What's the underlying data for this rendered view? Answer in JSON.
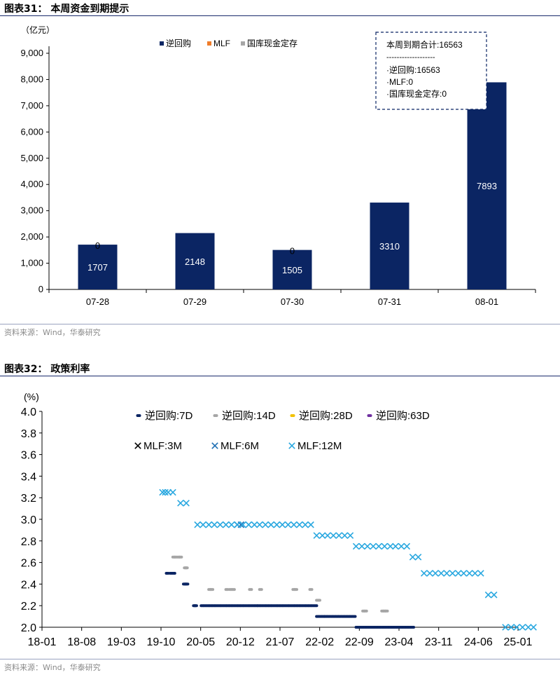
{
  "figure1": {
    "title": "图表31： 本周资金到期提示",
    "source": "资料来源：Wind，华泰研究",
    "unit_label": "（亿元）",
    "summary_box": [
      "本周到期合计:16563",
      "-------------------",
      "·逆回购:16563",
      "·MLF:0",
      "·国库现金定存:0"
    ]
  },
  "figure2": {
    "title": "图表32： 政策利率",
    "source": "资料来源：Wind，华泰研究",
    "unit_label": "(%)"
  },
  "colors": {
    "navy": "#0b2563",
    "orange": "#f07d2a",
    "gray": "#a6a6a6",
    "gold": "#f2c200",
    "purple": "#7030a0",
    "mlf_3m": "#000000",
    "mlf_6m": "#1f6fb4",
    "mlf_12m": "#2aa8e0"
  },
  "chart_data": [
    {
      "type": "bar",
      "stacked": true,
      "categories": [
        "07-28",
        "07-29",
        "07-30",
        "07-31",
        "08-01"
      ],
      "series": [
        {
          "name": "逆回购",
          "values": [
            1707,
            2148,
            1505,
            3310,
            7893
          ],
          "labels": [
            "1707",
            "2148",
            "1505",
            "3310",
            "7893"
          ]
        },
        {
          "name": "MLF",
          "values": [
            0,
            0,
            0,
            0,
            0
          ],
          "labels": [
            "0",
            "",
            "0",
            "",
            ""
          ]
        },
        {
          "name": "国库现金定存",
          "values": [
            0,
            0,
            0,
            0,
            0
          ],
          "labels": [
            "",
            "",
            "",
            "",
            ""
          ]
        }
      ],
      "yticks": [
        "0",
        "1,000",
        "2,000",
        "3,000",
        "4,000",
        "5,000",
        "6,000",
        "7,000",
        "8,000",
        "9,000"
      ],
      "ylim": [
        0,
        9000
      ],
      "legend": "top-center"
    },
    {
      "type": "scatter",
      "x_ticks": [
        "18-01",
        "18-08",
        "19-03",
        "19-10",
        "20-05",
        "20-12",
        "21-07",
        "22-02",
        "22-09",
        "23-04",
        "23-11",
        "24-06",
        "25-01"
      ],
      "yticks": [
        "2.0",
        "2.2",
        "2.4",
        "2.6",
        "2.8",
        "3.0",
        "3.2",
        "3.4",
        "3.6",
        "3.8",
        "4.0"
      ],
      "ylim": [
        2.0,
        4.0
      ],
      "legend": "top",
      "series": [
        {
          "name": "逆回购:7D",
          "marker": "dot",
          "points": [
            [
              "2019-11-05",
              2.5
            ],
            [
              "2019-11-25",
              2.5
            ],
            [
              "2019-12-10",
              2.5
            ],
            [
              "2020-02-05",
              2.4
            ],
            [
              "2020-02-12",
              2.4
            ],
            [
              "2020-02-18",
              2.4
            ],
            [
              "2020-03-30",
              2.2
            ],
            [
              "2020-04-05",
              2.2
            ],
            [
              "2020-05-10",
              2.2
            ],
            [
              "2020-05-25",
              2.2
            ],
            [
              "2020-06-10",
              2.2
            ],
            [
              "2020-06-25",
              2.2
            ],
            [
              "2020-07-10",
              2.2
            ],
            [
              "2020-07-25",
              2.2
            ],
            [
              "2020-08-10",
              2.2
            ],
            [
              "2020-08-25",
              2.2
            ],
            [
              "2020-09-10",
              2.2
            ],
            [
              "2020-09-25",
              2.2
            ],
            [
              "2020-10-10",
              2.2
            ],
            [
              "2020-10-25",
              2.2
            ],
            [
              "2020-11-10",
              2.2
            ],
            [
              "2020-11-25",
              2.2
            ],
            [
              "2020-12-10",
              2.2
            ],
            [
              "2020-12-25",
              2.2
            ],
            [
              "2021-01-10",
              2.2
            ],
            [
              "2021-01-25",
              2.2
            ],
            [
              "2021-02-10",
              2.2
            ],
            [
              "2021-02-25",
              2.2
            ],
            [
              "2021-03-10",
              2.2
            ],
            [
              "2021-03-25",
              2.2
            ],
            [
              "2021-04-10",
              2.2
            ],
            [
              "2021-04-25",
              2.2
            ],
            [
              "2021-05-10",
              2.2
            ],
            [
              "2021-05-25",
              2.2
            ],
            [
              "2021-06-10",
              2.2
            ],
            [
              "2021-06-25",
              2.2
            ],
            [
              "2021-07-10",
              2.2
            ],
            [
              "2021-07-25",
              2.2
            ],
            [
              "2021-08-10",
              2.2
            ],
            [
              "2021-08-25",
              2.2
            ],
            [
              "2021-09-10",
              2.2
            ],
            [
              "2021-09-25",
              2.2
            ],
            [
              "2021-10-10",
              2.2
            ],
            [
              "2021-10-25",
              2.2
            ],
            [
              "2021-11-10",
              2.2
            ],
            [
              "2021-11-25",
              2.2
            ],
            [
              "2021-12-10",
              2.2
            ],
            [
              "2021-12-25",
              2.2
            ],
            [
              "2022-01-10",
              2.2
            ],
            [
              "2022-01-20",
              2.1
            ],
            [
              "2022-02-05",
              2.1
            ],
            [
              "2022-02-20",
              2.1
            ],
            [
              "2022-03-05",
              2.1
            ],
            [
              "2022-03-20",
              2.1
            ],
            [
              "2022-04-05",
              2.1
            ],
            [
              "2022-04-20",
              2.1
            ],
            [
              "2022-05-05",
              2.1
            ],
            [
              "2022-05-20",
              2.1
            ],
            [
              "2022-06-05",
              2.1
            ],
            [
              "2022-06-20",
              2.1
            ],
            [
              "2022-07-05",
              2.1
            ],
            [
              "2022-07-20",
              2.1
            ],
            [
              "2022-08-05",
              2.1
            ],
            [
              "2022-08-20",
              2.0
            ],
            [
              "2022-09-05",
              2.0
            ],
            [
              "2022-09-20",
              2.0
            ],
            [
              "2022-10-05",
              2.0
            ],
            [
              "2022-10-20",
              2.0
            ],
            [
              "2022-11-05",
              2.0
            ],
            [
              "2022-11-20",
              2.0
            ],
            [
              "2022-12-05",
              2.0
            ],
            [
              "2022-12-20",
              2.0
            ],
            [
              "2023-01-05",
              2.0
            ],
            [
              "2023-01-20",
              2.0
            ],
            [
              "2023-02-05",
              2.0
            ],
            [
              "2023-02-20",
              2.0
            ],
            [
              "2023-03-05",
              2.0
            ],
            [
              "2023-03-20",
              2.0
            ],
            [
              "2023-04-05",
              2.0
            ],
            [
              "2023-04-20",
              2.0
            ],
            [
              "2023-05-05",
              2.0
            ],
            [
              "2023-05-20",
              2.0
            ],
            [
              "2023-06-05",
              2.0
            ],
            [
              "2023-06-15",
              2.0
            ]
          ]
        },
        {
          "name": "逆回购:14D",
          "marker": "dot",
          "points": [
            [
              "2019-12-10",
              2.65
            ],
            [
              "2019-12-20",
              2.65
            ],
            [
              "2020-01-05",
              2.65
            ],
            [
              "2020-01-15",
              2.65
            ],
            [
              "2020-02-10",
              2.55
            ],
            [
              "2020-02-15",
              2.55
            ],
            [
              "2020-06-20",
              2.35
            ],
            [
              "2020-07-01",
              2.35
            ],
            [
              "2020-09-20",
              2.35
            ],
            [
              "2020-10-10",
              2.35
            ],
            [
              "2020-10-25",
              2.35
            ],
            [
              "2021-01-25",
              2.35
            ],
            [
              "2021-03-20",
              2.35
            ],
            [
              "2021-09-15",
              2.35
            ],
            [
              "2021-09-25",
              2.35
            ],
            [
              "2021-12-15",
              2.35
            ],
            [
              "2022-01-20",
              2.25
            ],
            [
              "2022-01-27",
              2.25
            ],
            [
              "2022-09-25",
              2.15
            ],
            [
              "2022-10-05",
              2.15
            ],
            [
              "2023-01-05",
              2.15
            ],
            [
              "2023-01-15",
              2.15
            ],
            [
              "2023-01-25",
              2.15
            ]
          ]
        },
        {
          "name": "逆回购:28D",
          "marker": "dot",
          "points": []
        },
        {
          "name": "逆回购:63D",
          "marker": "dot",
          "points": []
        },
        {
          "name": "MLF:3M",
          "marker": "x",
          "points": []
        },
        {
          "name": "MLF:6M",
          "marker": "x",
          "points": [
            [
              "2020-11-15",
              2.95
            ],
            [
              "2020-12-05",
              2.95
            ]
          ]
        },
        {
          "name": "MLF:12M",
          "marker": "x",
          "points": [
            [
              "2019-10-10",
              3.25
            ],
            [
              "2019-10-25",
              3.25
            ],
            [
              "2019-11-10",
              3.25
            ],
            [
              "2019-12-05",
              3.25
            ],
            [
              "2020-01-15",
              3.15
            ],
            [
              "2020-02-15",
              3.15
            ],
            [
              "2020-04-15",
              2.95
            ],
            [
              "2020-05-15",
              2.95
            ],
            [
              "2020-06-15",
              2.95
            ],
            [
              "2020-07-15",
              2.95
            ],
            [
              "2020-08-15",
              2.95
            ],
            [
              "2020-09-15",
              2.95
            ],
            [
              "2020-10-15",
              2.95
            ],
            [
              "2020-11-15",
              2.95
            ],
            [
              "2020-12-15",
              2.95
            ],
            [
              "2021-01-15",
              2.95
            ],
            [
              "2021-02-15",
              2.95
            ],
            [
              "2021-03-15",
              2.95
            ],
            [
              "2021-04-15",
              2.95
            ],
            [
              "2021-05-15",
              2.95
            ],
            [
              "2021-06-15",
              2.95
            ],
            [
              "2021-07-15",
              2.95
            ],
            [
              "2021-08-15",
              2.95
            ],
            [
              "2021-09-15",
              2.95
            ],
            [
              "2021-10-15",
              2.95
            ],
            [
              "2021-11-15",
              2.95
            ],
            [
              "2021-12-15",
              2.95
            ],
            [
              "2022-01-15",
              2.85
            ],
            [
              "2022-02-15",
              2.85
            ],
            [
              "2022-03-15",
              2.85
            ],
            [
              "2022-04-15",
              2.85
            ],
            [
              "2022-05-15",
              2.85
            ],
            [
              "2022-06-15",
              2.85
            ],
            [
              "2022-07-15",
              2.85
            ],
            [
              "2022-08-15",
              2.75
            ],
            [
              "2022-09-15",
              2.75
            ],
            [
              "2022-10-15",
              2.75
            ],
            [
              "2022-11-15",
              2.75
            ],
            [
              "2022-12-15",
              2.75
            ],
            [
              "2023-01-15",
              2.75
            ],
            [
              "2023-02-15",
              2.75
            ],
            [
              "2023-03-15",
              2.75
            ],
            [
              "2023-04-15",
              2.75
            ],
            [
              "2023-05-15",
              2.75
            ],
            [
              "2023-06-15",
              2.65
            ],
            [
              "2023-07-15",
              2.65
            ],
            [
              "2023-08-15",
              2.5
            ],
            [
              "2023-09-15",
              2.5
            ],
            [
              "2023-10-15",
              2.5
            ],
            [
              "2023-11-15",
              2.5
            ],
            [
              "2023-12-15",
              2.5
            ],
            [
              "2024-01-15",
              2.5
            ],
            [
              "2024-02-15",
              2.5
            ],
            [
              "2024-03-15",
              2.5
            ],
            [
              "2024-04-15",
              2.5
            ],
            [
              "2024-05-15",
              2.5
            ],
            [
              "2024-06-15",
              2.5
            ],
            [
              "2024-07-25",
              2.3
            ],
            [
              "2024-08-25",
              2.3
            ],
            [
              "2024-10-25",
              2.0
            ],
            [
              "2024-11-25",
              2.0
            ],
            [
              "2024-12-25",
              2.0
            ],
            [
              "2025-01-25",
              2.0
            ],
            [
              "2025-02-25",
              2.0
            ],
            [
              "2025-03-25",
              2.0
            ]
          ]
        }
      ]
    }
  ]
}
